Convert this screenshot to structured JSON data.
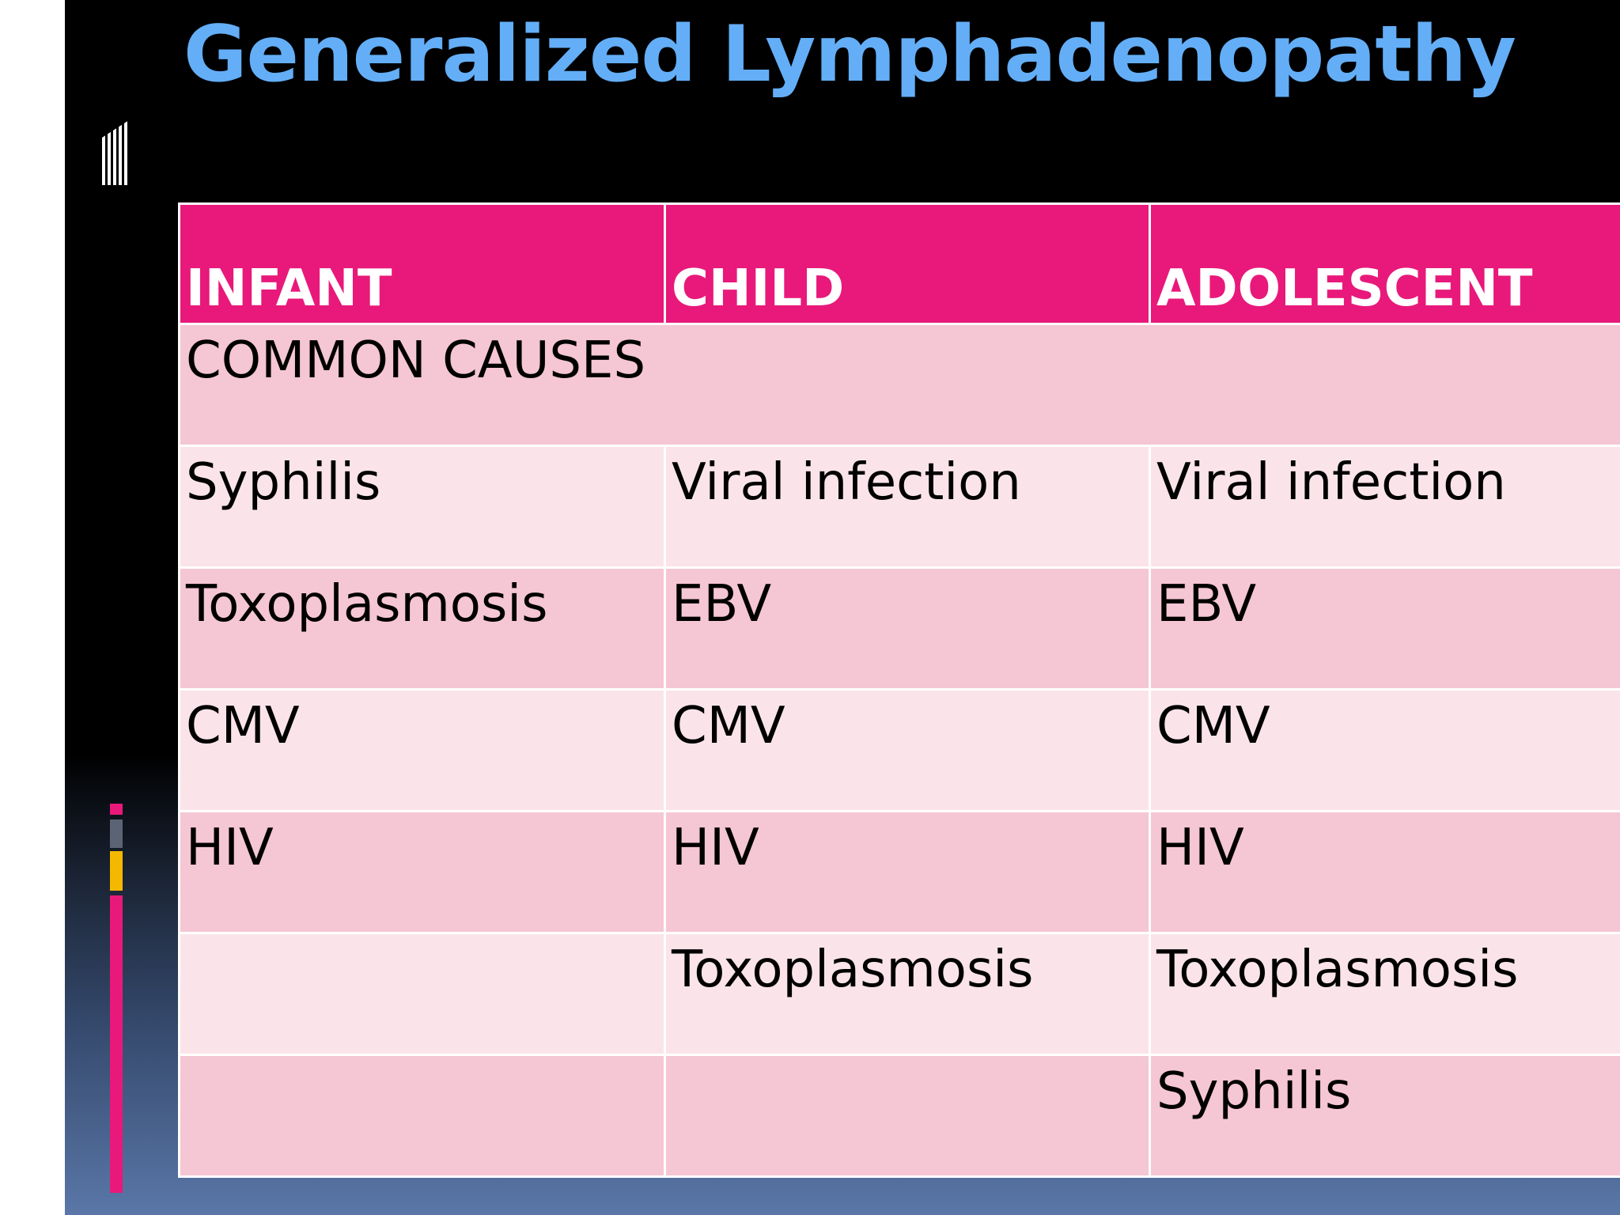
{
  "slide": {
    "title": "Generalized Lymphadenopathy",
    "colors": {
      "title": "#63aef7",
      "header_bg": "#e8197a",
      "row_dark": "#f5c6d4",
      "row_light": "#fae4ea",
      "accent_pink": "#e8197a",
      "accent_gray": "#5b6474",
      "accent_yellow": "#f5b800"
    }
  },
  "table": {
    "headers": [
      "INFANT",
      "CHILD",
      "ADOLESCENT"
    ],
    "section_label": "COMMON CAUSES",
    "rows": [
      [
        "Syphilis",
        "Viral infection",
        "Viral infection"
      ],
      [
        "Toxoplasmosis",
        "EBV",
        "EBV"
      ],
      [
        "CMV",
        "CMV",
        "CMV"
      ],
      [
        "HIV",
        "HIV",
        "HIV"
      ],
      [
        "",
        "Toxoplasmosis",
        "Toxoplasmosis"
      ],
      [
        "",
        "",
        "Syphilis"
      ]
    ]
  }
}
